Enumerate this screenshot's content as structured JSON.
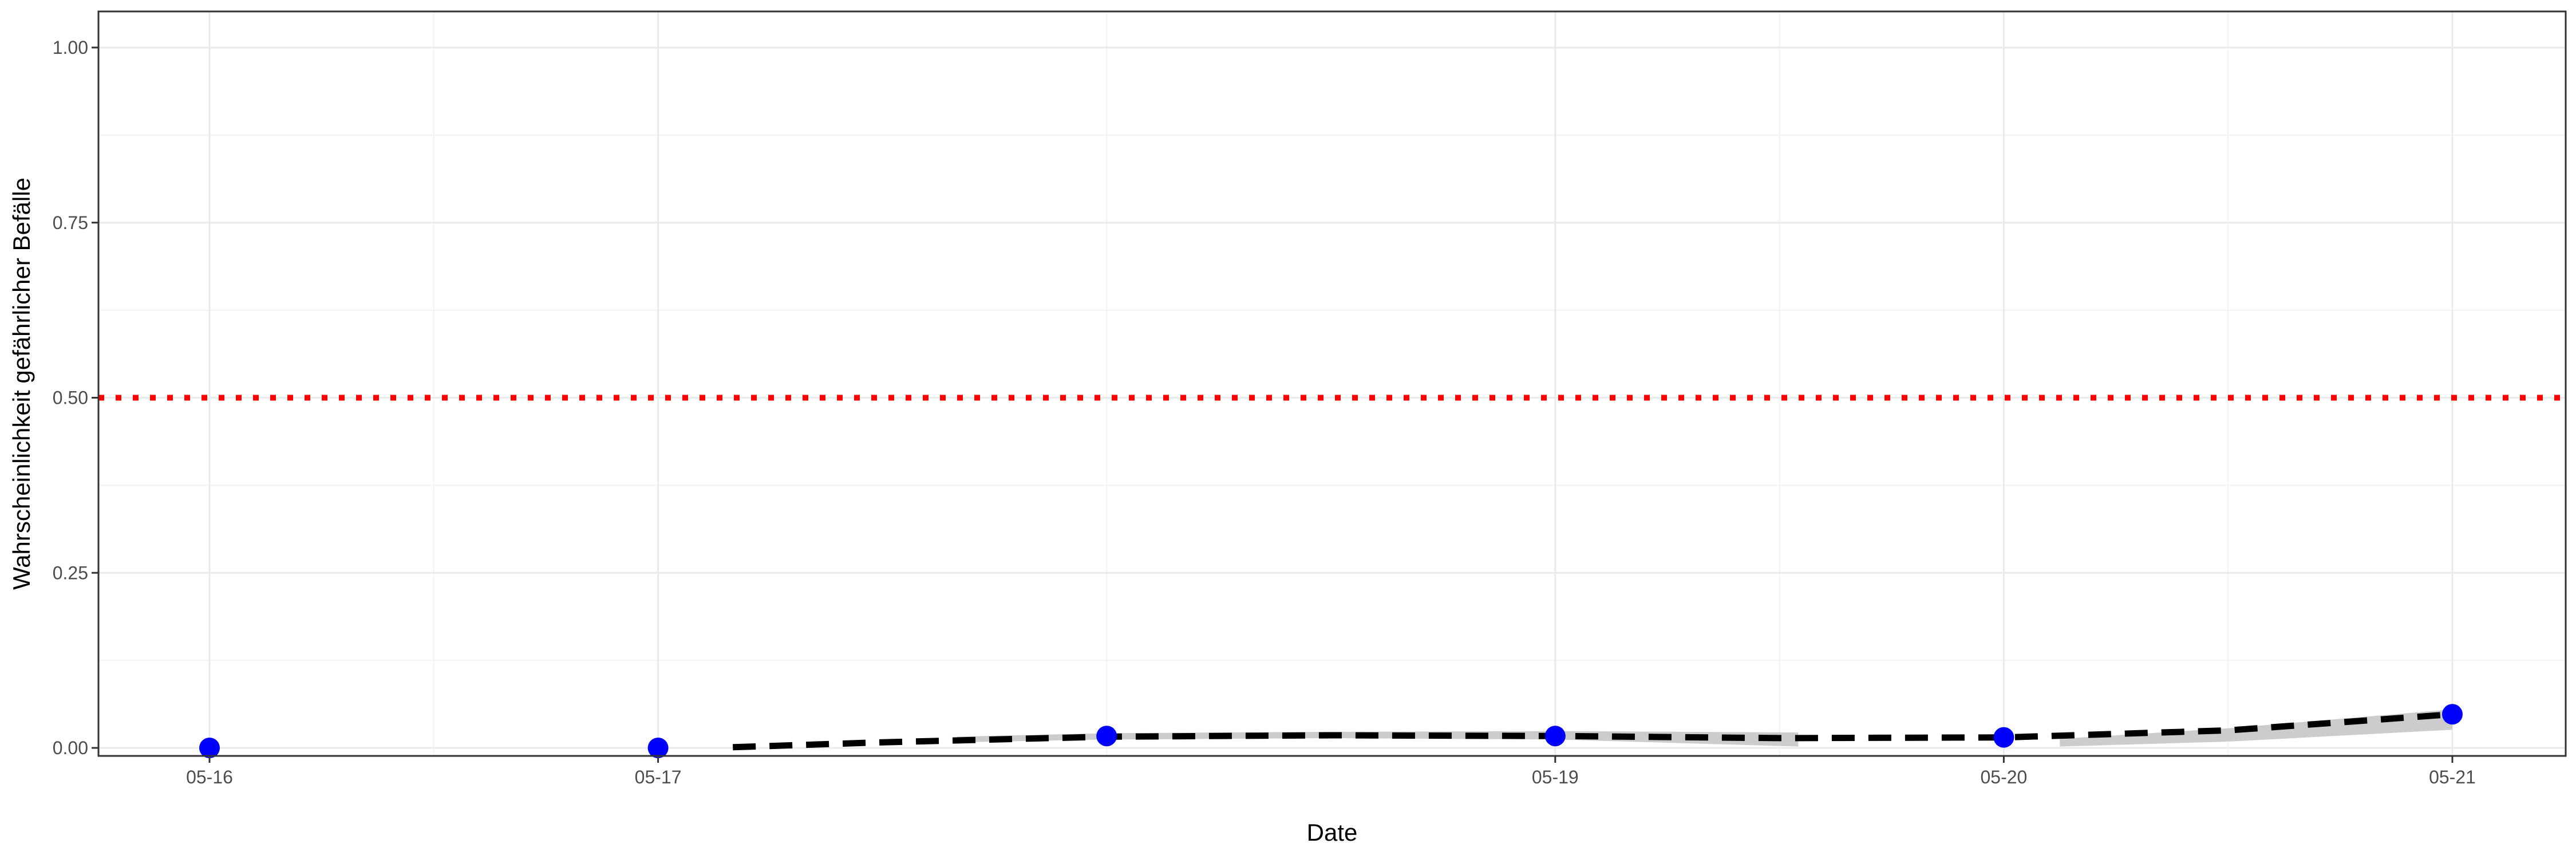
{
  "chart_data": {
    "type": "scatter",
    "title": "",
    "xlabel": "Date",
    "ylabel": "Wahrscheinlichkeit gefährlicher Befälle",
    "x_ticks": [
      "05-16",
      "05-17",
      "05-19",
      "05-20",
      "05-21"
    ],
    "x_tick_days": [
      16,
      17,
      19,
      20,
      21
    ],
    "xlim": [
      "05-15 18:00",
      "05-21 06:00"
    ],
    "ylim": [
      0,
      1
    ],
    "y_ticks": [
      0.0,
      0.25,
      0.5,
      0.75,
      1.0
    ],
    "y_tick_labels": [
      "0.00",
      "0.25",
      "0.50",
      "0.75",
      "1.00"
    ],
    "grid": true,
    "points": {
      "color": "#0000ff",
      "x": [
        "05-16",
        "05-17",
        "05-18",
        "05-19",
        "05-20",
        "05-21"
      ],
      "y": [
        0.0,
        0.0,
        0.017,
        0.017,
        0.015,
        0.048
      ]
    },
    "trend": {
      "color": "#000000",
      "style": "dashed",
      "x": [
        "05-17 04:00",
        "05-17 12:00",
        "05-18 00:00",
        "05-18 12:00",
        "05-19 00:00",
        "05-19 12:00",
        "05-20 00:00",
        "05-20 12:00",
        "05-21 00:00"
      ],
      "y": [
        0.001,
        0.008,
        0.016,
        0.018,
        0.017,
        0.014,
        0.015,
        0.025,
        0.048
      ]
    },
    "confidence_bands": {
      "color": "#cccccc",
      "segments": [
        {
          "x": [
            "05-17 16:00",
            "05-18 00:00",
            "05-18 12:00",
            "05-19 00:00",
            "05-19 13:00"
          ],
          "lower": [
            0.008,
            0.012,
            0.014,
            0.012,
            0.002
          ],
          "upper": [
            0.016,
            0.021,
            0.023,
            0.024,
            0.022
          ]
        },
        {
          "x": [
            "05-20 03:00",
            "05-20 12:00",
            "05-21 00:00"
          ],
          "lower": [
            0.002,
            0.009,
            0.026
          ],
          "upper": [
            0.013,
            0.028,
            0.055
          ]
        }
      ]
    },
    "threshold": {
      "y": 0.5,
      "color": "#ff0000",
      "style": "dotted"
    }
  }
}
